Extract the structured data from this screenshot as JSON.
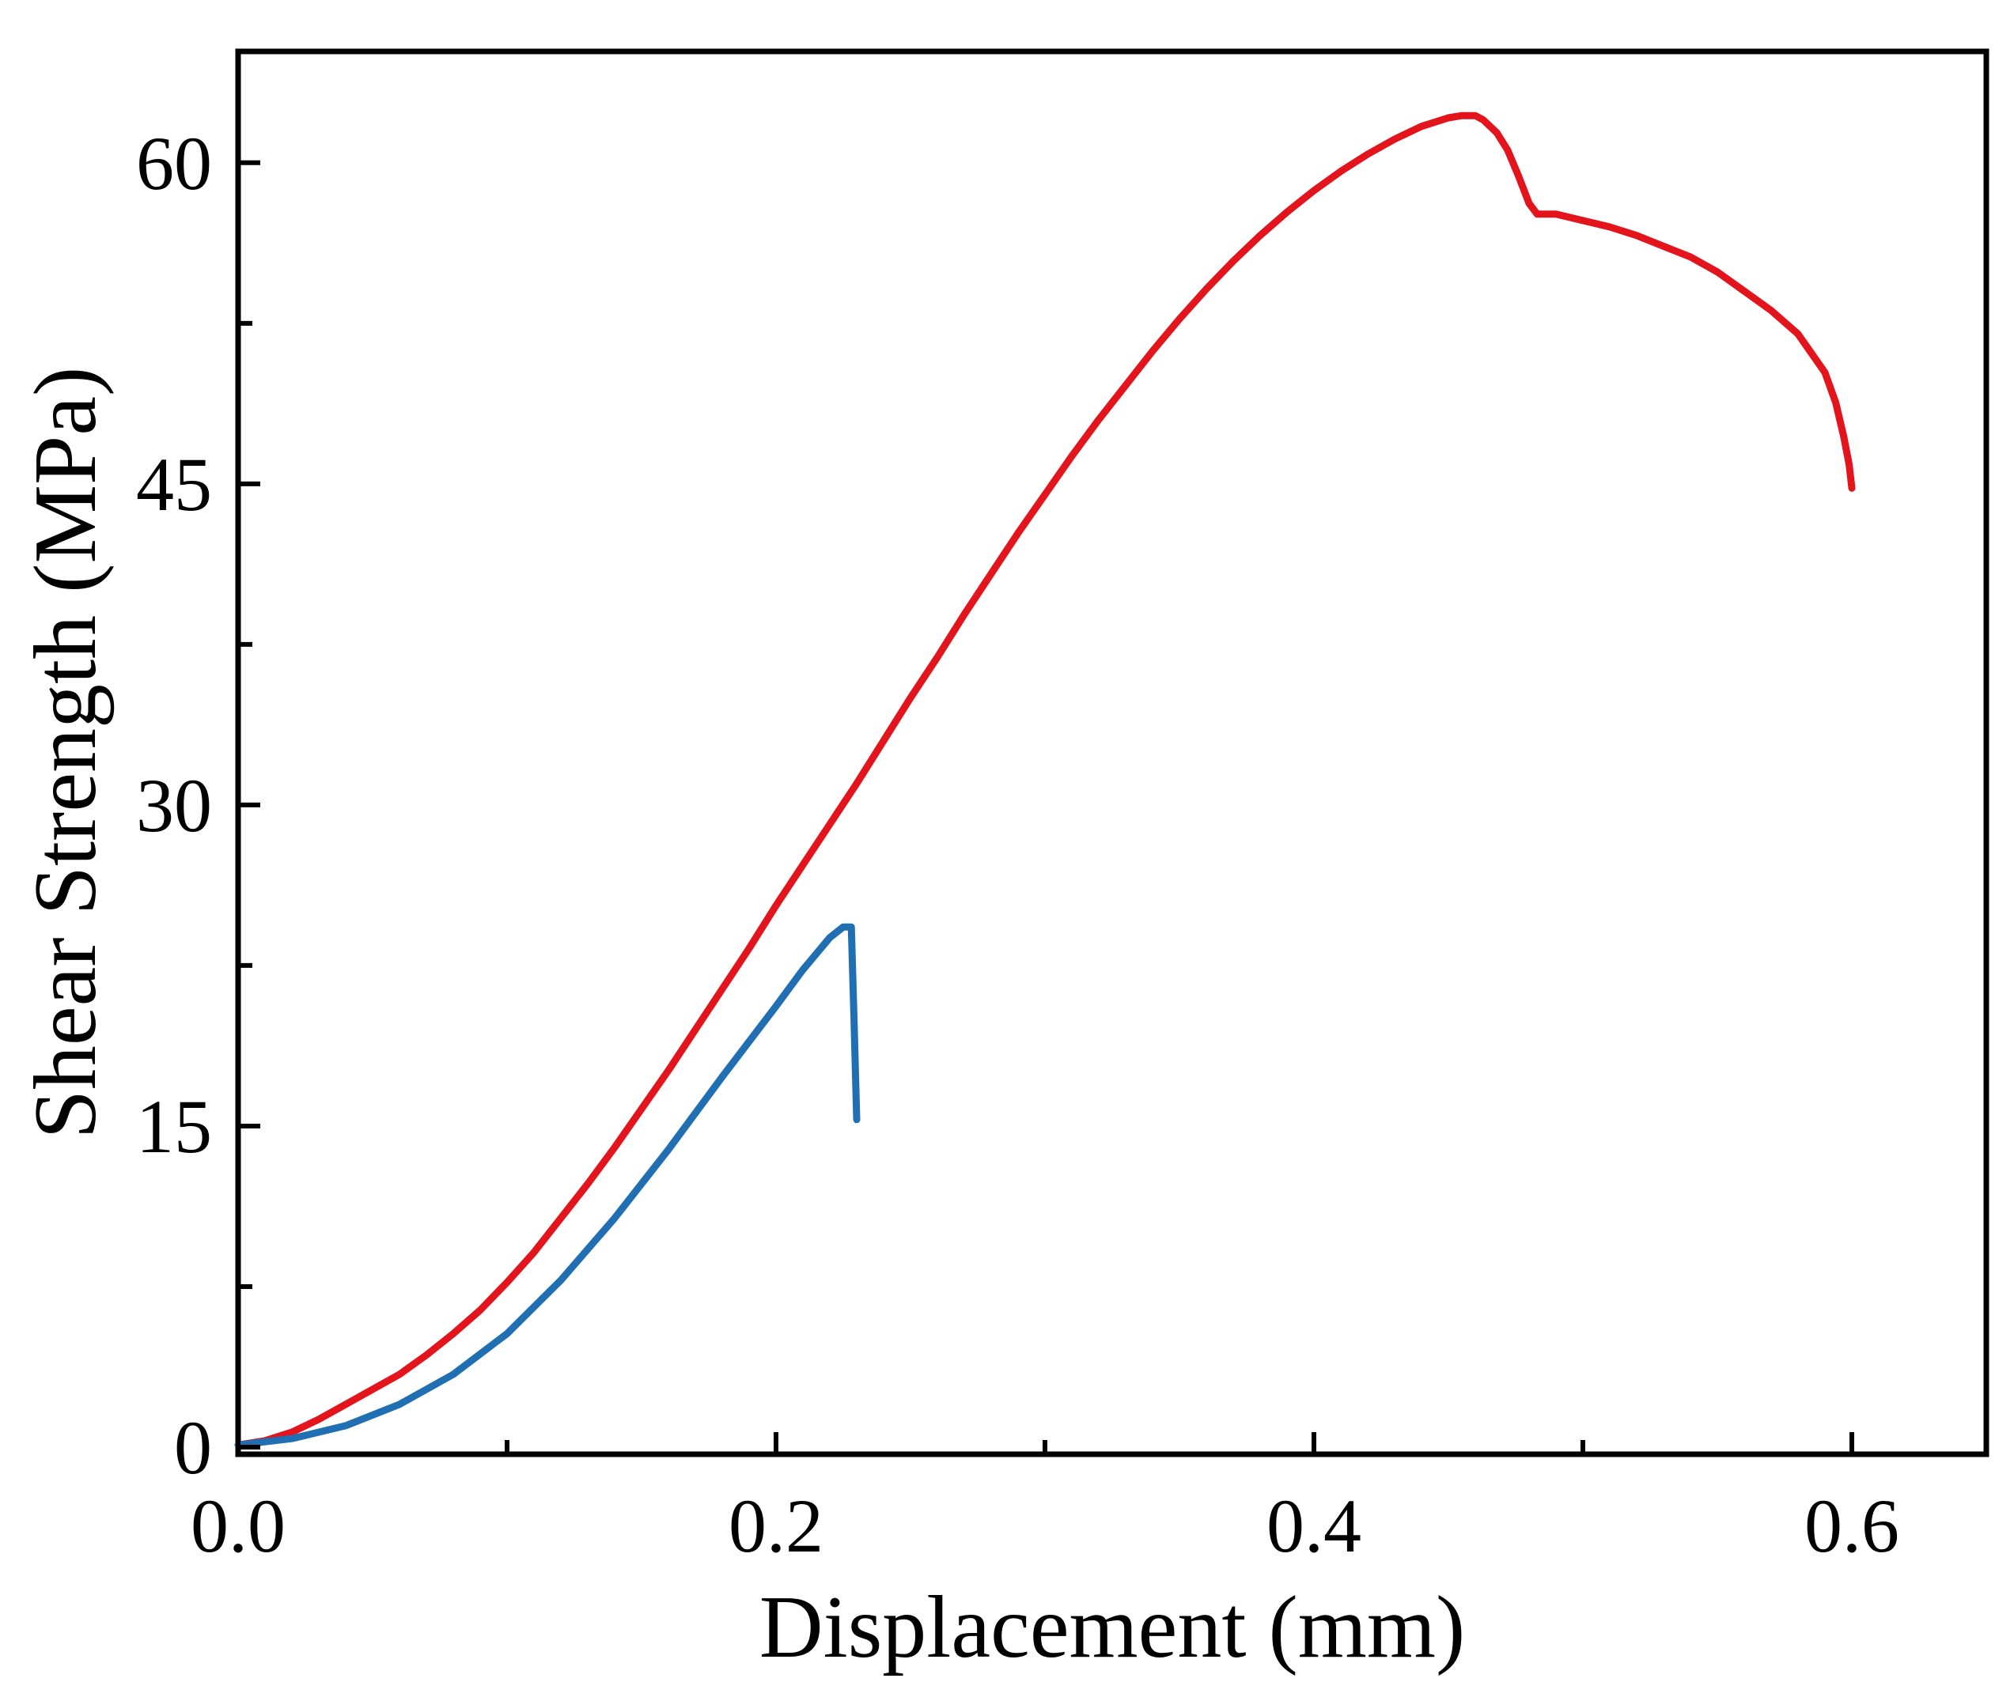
{
  "chart_data": {
    "type": "line",
    "title": "",
    "xlabel": "Displacement (mm)",
    "ylabel": "Shear Strength (MPa)",
    "xlim": [
      0,
      0.65
    ],
    "ylim": [
      0,
      65
    ],
    "x_ticks": [
      0.0,
      0.2,
      0.4,
      0.6
    ],
    "x_tick_labels": [
      "0.0",
      "0.2",
      "0.4",
      "0.6"
    ],
    "x_minor_ticks": [
      0.1,
      0.3,
      0.5
    ],
    "y_ticks": [
      0,
      15,
      30,
      45,
      60
    ],
    "y_tick_labels": [
      "0",
      "15",
      "30",
      "45",
      "60"
    ],
    "y_minor_ticks": [
      7.5,
      22.5,
      37.5,
      52.5
    ],
    "grid": false,
    "legend": "none",
    "series": [
      {
        "name": "red curve",
        "color": "#e3141b",
        "x": [
          0.0,
          0.01,
          0.02,
          0.03,
          0.04,
          0.05,
          0.06,
          0.07,
          0.08,
          0.09,
          0.1,
          0.11,
          0.12,
          0.13,
          0.14,
          0.15,
          0.16,
          0.17,
          0.18,
          0.19,
          0.2,
          0.21,
          0.22,
          0.23,
          0.24,
          0.25,
          0.26,
          0.27,
          0.28,
          0.29,
          0.3,
          0.31,
          0.32,
          0.33,
          0.34,
          0.35,
          0.36,
          0.37,
          0.38,
          0.39,
          0.4,
          0.41,
          0.42,
          0.43,
          0.44,
          0.45,
          0.455,
          0.46,
          0.463,
          0.468,
          0.472,
          0.476,
          0.48,
          0.483,
          0.486,
          0.49,
          0.5,
          0.51,
          0.52,
          0.53,
          0.54,
          0.55,
          0.56,
          0.57,
          0.58,
          0.59,
          0.594,
          0.597,
          0.599,
          0.6
        ],
        "y": [
          0.1,
          0.3,
          0.7,
          1.3,
          2.0,
          2.7,
          3.4,
          4.3,
          5.3,
          6.4,
          7.7,
          9.1,
          10.7,
          12.3,
          14.0,
          15.8,
          17.6,
          19.5,
          21.4,
          23.3,
          25.3,
          27.2,
          29.1,
          31.0,
          33.0,
          35.0,
          36.9,
          38.9,
          40.8,
          42.7,
          44.5,
          46.3,
          48.0,
          49.6,
          51.2,
          52.7,
          54.1,
          55.4,
          56.6,
          57.7,
          58.7,
          59.6,
          60.4,
          61.1,
          61.7,
          62.1,
          62.2,
          62.2,
          62.0,
          61.4,
          60.6,
          59.4,
          58.1,
          57.6,
          57.6,
          57.6,
          57.3,
          57.0,
          56.6,
          56.1,
          55.6,
          54.9,
          54.0,
          53.1,
          52.0,
          50.2,
          48.8,
          47.2,
          45.9,
          44.8
        ]
      },
      {
        "name": "blue curve",
        "color": "#1f6fb2",
        "x": [
          0.0,
          0.02,
          0.04,
          0.06,
          0.08,
          0.1,
          0.12,
          0.14,
          0.16,
          0.18,
          0.2,
          0.21,
          0.22,
          0.225,
          0.228,
          0.229,
          0.23
        ],
        "y": [
          0.1,
          0.4,
          1.0,
          2.0,
          3.4,
          5.3,
          7.8,
          10.7,
          13.9,
          17.3,
          20.6,
          22.3,
          23.8,
          24.3,
          24.3,
          20.0,
          15.3
        ]
      }
    ]
  }
}
